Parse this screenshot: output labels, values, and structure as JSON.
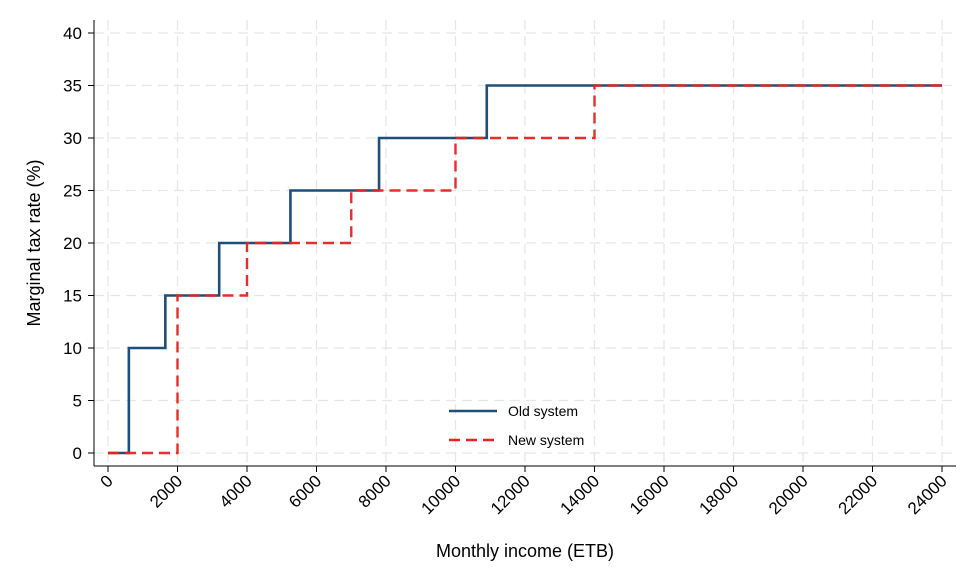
{
  "chart_data": {
    "type": "line",
    "title": "",
    "xlabel": "Monthly income (ETB)",
    "ylabel": "Marginal tax rate (%)",
    "xlim": [
      0,
      24000
    ],
    "ylim": [
      0,
      40
    ],
    "x_ticks": [
      0,
      2000,
      4000,
      6000,
      8000,
      10000,
      12000,
      14000,
      16000,
      18000,
      20000,
      22000,
      24000
    ],
    "y_ticks": [
      0,
      5,
      10,
      15,
      20,
      25,
      30,
      35,
      40
    ],
    "x_tick_labels": [
      "0",
      "2000",
      "4000",
      "6000",
      "8000",
      "10000",
      "12000",
      "14000",
      "16000",
      "18000",
      "20000",
      "22000",
      "24000"
    ],
    "y_tick_labels": [
      "0",
      "5",
      "10",
      "15",
      "20",
      "25",
      "30",
      "35",
      "40"
    ],
    "grid": true,
    "legend_position": "bottom-center",
    "series": [
      {
        "name": "Old system",
        "color": "#1f4e79",
        "dash": "solid",
        "step": true,
        "points": [
          [
            0,
            0
          ],
          [
            600,
            10
          ],
          [
            1650,
            15
          ],
          [
            3200,
            20
          ],
          [
            5250,
            25
          ],
          [
            7800,
            30
          ],
          [
            10900,
            35
          ],
          [
            24000,
            35
          ]
        ]
      },
      {
        "name": "New system",
        "color": "#e8231f",
        "dash": "dashed",
        "step": true,
        "points": [
          [
            0,
            0
          ],
          [
            2000,
            15
          ],
          [
            4000,
            20
          ],
          [
            7000,
            25
          ],
          [
            10000,
            30
          ],
          [
            14000,
            35
          ],
          [
            24000,
            35
          ]
        ]
      }
    ]
  }
}
